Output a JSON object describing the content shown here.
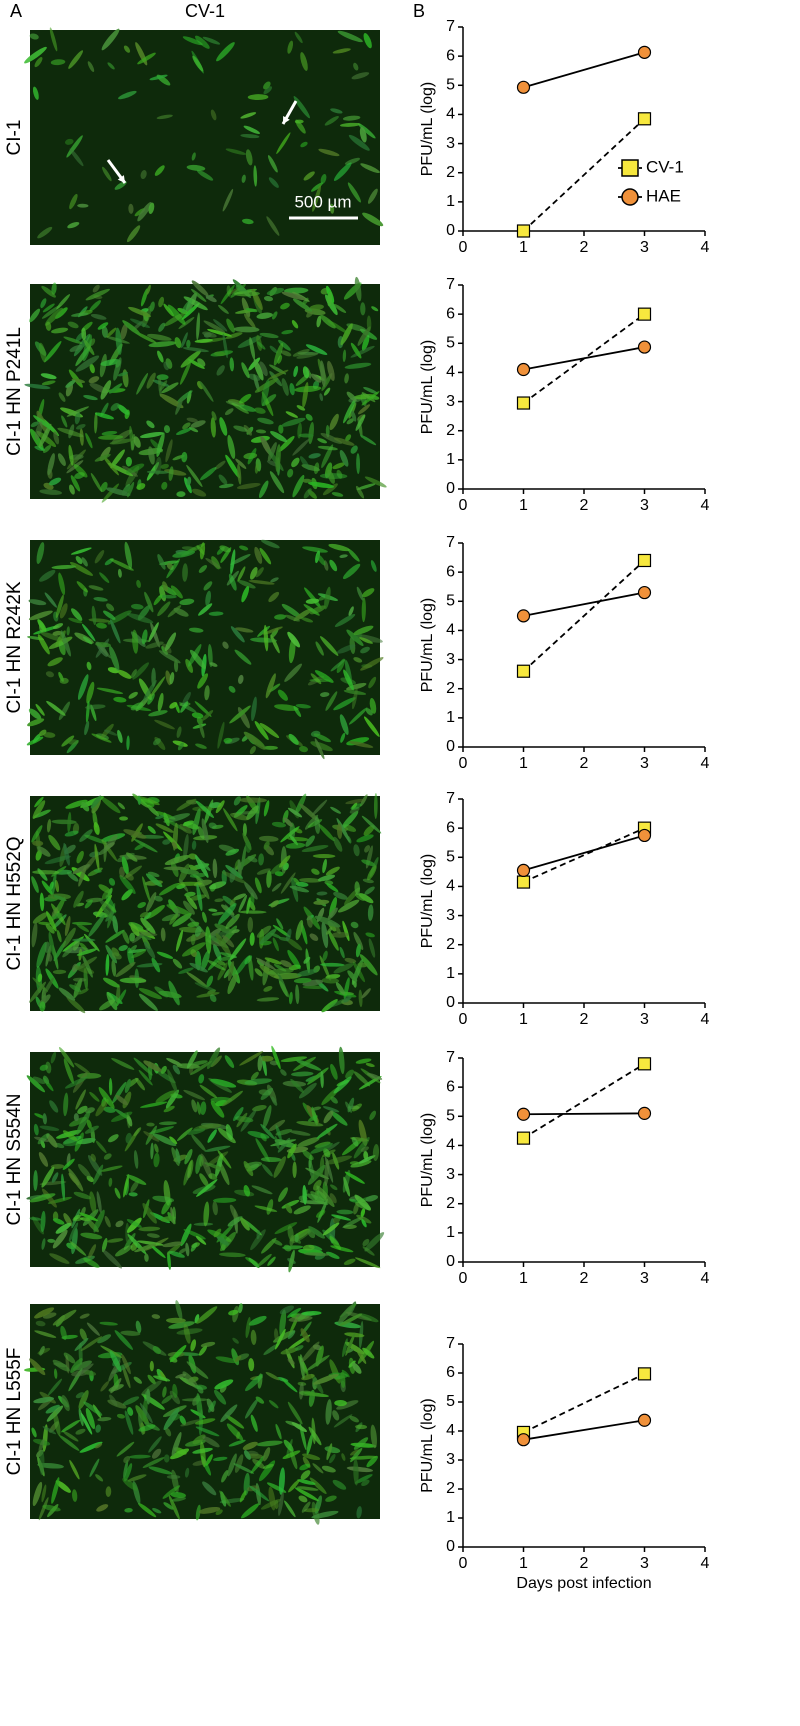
{
  "figure": {
    "panel_a": "A",
    "panel_b": "B",
    "column_title": "CV-1",
    "scale_bar": "500 µm",
    "row_labels": [
      "CI-1",
      "CI-1 HN P241L",
      "CI-1 HN R242K",
      "CI-1 HN H552Q",
      "CI-1 HN S554N",
      "CI-1 HN L555F"
    ]
  },
  "chart_data": [
    {
      "type": "line",
      "ylabel": "PFU/mL (log)",
      "x": [
        1,
        3
      ],
      "xlim": [
        0,
        4
      ],
      "xticks": [
        0,
        1,
        2,
        3,
        4
      ],
      "ylim": [
        0,
        7
      ],
      "yticks": [
        0,
        1,
        2,
        3,
        4,
        5,
        6,
        7
      ],
      "legend": "right",
      "series": [
        {
          "name": "CV-1",
          "color": "#f7e83e",
          "marker": "square",
          "dash": true,
          "values": [
            0,
            3.85
          ]
        },
        {
          "name": "HAE",
          "color": "#f0913a",
          "marker": "circle",
          "dash": false,
          "values": [
            4.93,
            6.13
          ]
        }
      ]
    },
    {
      "type": "line",
      "ylabel": "PFU/mL (log)",
      "x": [
        1,
        3
      ],
      "xlim": [
        0,
        4
      ],
      "xticks": [
        0,
        1,
        2,
        3,
        4
      ],
      "ylim": [
        0,
        7
      ],
      "yticks": [
        0,
        1,
        2,
        3,
        4,
        5,
        6,
        7
      ],
      "series": [
        {
          "color": "#f7e83e",
          "marker": "square",
          "dash": true,
          "values": [
            2.95,
            6.0
          ]
        },
        {
          "color": "#f0913a",
          "marker": "circle",
          "dash": false,
          "values": [
            4.1,
            4.87
          ]
        }
      ]
    },
    {
      "type": "line",
      "ylabel": "PFU/mL (log)",
      "x": [
        1,
        3
      ],
      "xlim": [
        0,
        4
      ],
      "xticks": [
        0,
        1,
        2,
        3,
        4
      ],
      "ylim": [
        0,
        7
      ],
      "yticks": [
        0,
        1,
        2,
        3,
        4,
        5,
        6,
        7
      ],
      "series": [
        {
          "color": "#f7e83e",
          "marker": "square",
          "dash": true,
          "values": [
            2.6,
            6.4
          ]
        },
        {
          "color": "#f0913a",
          "marker": "circle",
          "dash": false,
          "values": [
            4.5,
            5.3
          ]
        }
      ]
    },
    {
      "type": "line",
      "ylabel": "PFU/mL (log)",
      "x": [
        1,
        3
      ],
      "xlim": [
        0,
        4
      ],
      "xticks": [
        0,
        1,
        2,
        3,
        4
      ],
      "ylim": [
        0,
        7
      ],
      "yticks": [
        0,
        1,
        2,
        3,
        4,
        5,
        6,
        7
      ],
      "series": [
        {
          "color": "#f7e83e",
          "marker": "square",
          "dash": true,
          "values": [
            4.15,
            6.0
          ]
        },
        {
          "color": "#f0913a",
          "marker": "circle",
          "dash": false,
          "values": [
            4.55,
            5.75
          ]
        }
      ]
    },
    {
      "type": "line",
      "ylabel": "PFU/mL (log)",
      "x": [
        1,
        3
      ],
      "xlim": [
        0,
        4
      ],
      "xticks": [
        0,
        1,
        2,
        3,
        4
      ],
      "ylim": [
        0,
        7
      ],
      "yticks": [
        0,
        1,
        2,
        3,
        4,
        5,
        6,
        7
      ],
      "series": [
        {
          "color": "#f7e83e",
          "marker": "square",
          "dash": true,
          "values": [
            4.25,
            6.8
          ]
        },
        {
          "color": "#f0913a",
          "marker": "circle",
          "dash": false,
          "values": [
            5.07,
            5.1
          ]
        }
      ]
    },
    {
      "type": "line",
      "ylabel": "PFU/mL (log)",
      "xlabel": "Days post infection",
      "x": [
        1,
        3
      ],
      "xlim": [
        0,
        4
      ],
      "xticks": [
        0,
        1,
        2,
        3,
        4
      ],
      "ylim": [
        0,
        7
      ],
      "yticks": [
        0,
        1,
        2,
        3,
        4,
        5,
        6,
        7
      ],
      "series": [
        {
          "color": "#f7e83e",
          "marker": "square",
          "dash": true,
          "values": [
            3.95,
            5.97
          ]
        },
        {
          "color": "#f0913a",
          "marker": "circle",
          "dash": false,
          "values": [
            3.7,
            4.37
          ]
        }
      ]
    }
  ]
}
